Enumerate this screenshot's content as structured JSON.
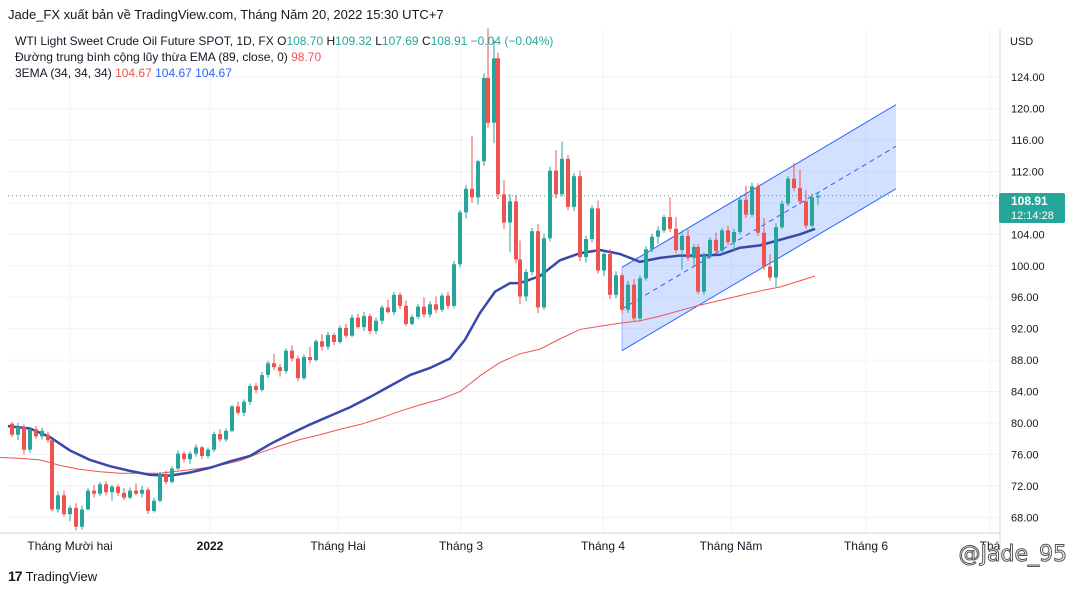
{
  "header": {
    "publisher_text": "Jade_FX xuất bản về TradingView.com, Tháng Năm 20, 2022 15:30 UTC+7"
  },
  "legend": {
    "symbol": "WTI Light Sweet Crude Oil Future SPOT, 1D, FX",
    "o_label": "O",
    "o_value": "108.70",
    "h_label": "H",
    "h_value": "109.32",
    "l_label": "L",
    "l_value": "107.69",
    "c_label": "C",
    "c_value": "108.91",
    "change": "−0.04 (−0.04%)",
    "ema_label": "Đường trung bình cộng lũy thừa EMA (89, close, 0)",
    "ema_value": "98.70",
    "ema3_label": "3EMA (34, 34, 34)",
    "ema3_v1": "104.67",
    "ema3_v2": "104.67",
    "ema3_v3": "104.67"
  },
  "price_axis": {
    "currency": "USD",
    "current_price": "108.91",
    "countdown": "12:14:28"
  },
  "footer": {
    "brand": "TradingView",
    "logo_text": "17"
  },
  "watermark": "@Jade_95",
  "colors": {
    "up": "#26a69a",
    "down": "#ef5350",
    "ema34": "#3949ab",
    "ema89": "#ef5350",
    "channel": "#2962ff",
    "channel_fill": "#2962ff"
  },
  "chart_data": {
    "type": "candlestick",
    "title": "WTI Light Sweet Crude Oil Future SPOT, 1D, FX",
    "ylabel": "USD",
    "ylim": [
      66,
      130
    ],
    "y_ticks": [
      68,
      72,
      76,
      80,
      84,
      88,
      92,
      96,
      100,
      104,
      108,
      112,
      116,
      120,
      124
    ],
    "x_ticks": [
      "Tháng Mười hai",
      "2022",
      "Tháng Hai",
      "Tháng 3",
      "Tháng 4",
      "Tháng Năm",
      "Tháng 6",
      "Thá"
    ],
    "last_price": 108.91,
    "grid": true,
    "series": [
      {
        "name": "EMA (89, close, 0)",
        "color": "#ef5350",
        "points": [
          [
            0,
            75.6
          ],
          [
            20,
            75.5
          ],
          [
            40,
            75.3
          ],
          [
            60,
            74.6
          ],
          [
            80,
            74.1
          ],
          [
            100,
            73.8
          ],
          [
            120,
            73.6
          ],
          [
            140,
            73.6
          ],
          [
            160,
            73.6
          ],
          [
            180,
            73.9
          ],
          [
            200,
            74.2
          ],
          [
            220,
            74.6
          ],
          [
            240,
            75.2
          ],
          [
            260,
            76.2
          ],
          [
            280,
            77.1
          ],
          [
            300,
            77.9
          ],
          [
            320,
            78.5
          ],
          [
            340,
            79.2
          ],
          [
            360,
            79.8
          ],
          [
            380,
            80.6
          ],
          [
            400,
            81.5
          ],
          [
            420,
            82.3
          ],
          [
            440,
            83.0
          ],
          [
            460,
            84.0
          ],
          [
            480,
            86.0
          ],
          [
            500,
            87.7
          ],
          [
            520,
            88.8
          ],
          [
            540,
            89.4
          ],
          [
            560,
            90.7
          ],
          [
            580,
            91.9
          ],
          [
            600,
            92.3
          ],
          [
            620,
            92.7
          ],
          [
            640,
            93.0
          ],
          [
            660,
            93.6
          ],
          [
            680,
            94.3
          ],
          [
            700,
            95.0
          ],
          [
            720,
            95.6
          ],
          [
            740,
            96.2
          ],
          [
            760,
            96.8
          ],
          [
            780,
            97.3
          ],
          [
            800,
            98.1
          ],
          [
            815,
            98.7
          ]
        ]
      },
      {
        "name": "3EMA (34, 34, 34)",
        "color": "#3949ab",
        "points": [
          [
            8,
            79.6
          ],
          [
            30,
            79.3
          ],
          [
            50,
            78.2
          ],
          [
            70,
            76.5
          ],
          [
            90,
            75.3
          ],
          [
            110,
            74.5
          ],
          [
            130,
            73.9
          ],
          [
            150,
            73.4
          ],
          [
            170,
            73.3
          ],
          [
            190,
            73.7
          ],
          [
            210,
            74.3
          ],
          [
            230,
            75.1
          ],
          [
            250,
            75.8
          ],
          [
            270,
            77.3
          ],
          [
            290,
            78.6
          ],
          [
            310,
            79.8
          ],
          [
            330,
            80.9
          ],
          [
            350,
            82.0
          ],
          [
            370,
            83.3
          ],
          [
            390,
            84.7
          ],
          [
            410,
            86.1
          ],
          [
            430,
            87.0
          ],
          [
            450,
            88.2
          ],
          [
            465,
            90.6
          ],
          [
            480,
            94.0
          ],
          [
            495,
            96.7
          ],
          [
            510,
            97.8
          ],
          [
            520,
            97.8
          ],
          [
            540,
            98.7
          ],
          [
            560,
            100.7
          ],
          [
            580,
            101.6
          ],
          [
            600,
            102.0
          ],
          [
            620,
            101.5
          ],
          [
            640,
            100.5
          ],
          [
            660,
            101.0
          ],
          [
            680,
            101.3
          ],
          [
            700,
            101.3
          ],
          [
            720,
            101.4
          ],
          [
            740,
            102.3
          ],
          [
            760,
            102.6
          ],
          [
            780,
            103.3
          ],
          [
            800,
            104.0
          ],
          [
            815,
            104.7
          ]
        ]
      }
    ],
    "channel": {
      "upper_start": [
        622,
        99.8
      ],
      "upper_end": [
        896,
        120.5
      ],
      "mid_start": [
        622,
        94.5
      ],
      "mid_end": [
        896,
        115.2
      ],
      "lower_start": [
        622,
        89.2
      ],
      "lower_end": [
        896,
        109.8
      ]
    },
    "candles": [
      [
        12,
        79.9,
        80.1,
        78.2,
        78.5
      ],
      [
        18,
        78.5,
        80.0,
        77.8,
        79.5
      ],
      [
        24,
        79.5,
        79.8,
        76.0,
        76.6
      ],
      [
        30,
        76.6,
        79.4,
        76.2,
        79.2
      ],
      [
        36,
        79.2,
        79.6,
        78.0,
        78.3
      ],
      [
        42,
        78.3,
        79.4,
        77.9,
        79.0
      ],
      [
        48,
        78.5,
        78.9,
        77.5,
        77.8
      ],
      [
        52,
        77.8,
        77.9,
        68.8,
        69.0
      ],
      [
        58,
        69.0,
        71.3,
        68.6,
        70.8
      ],
      [
        64,
        70.8,
        71.4,
        68.1,
        68.4
      ],
      [
        70,
        68.4,
        69.5,
        67.5,
        69.2
      ],
      [
        76,
        69.2,
        69.8,
        66.3,
        66.8
      ],
      [
        82,
        66.8,
        69.5,
        66.4,
        69.0
      ],
      [
        88,
        69.0,
        71.7,
        68.9,
        71.4
      ],
      [
        94,
        71.4,
        72.1,
        70.5,
        71.0
      ],
      [
        100,
        71.0,
        72.5,
        70.7,
        72.2
      ],
      [
        106,
        72.2,
        72.6,
        70.8,
        71.2
      ],
      [
        112,
        71.2,
        72.1,
        70.1,
        71.9
      ],
      [
        118,
        71.9,
        72.2,
        70.7,
        71.1
      ],
      [
        124,
        71.1,
        71.7,
        70.2,
        70.5
      ],
      [
        130,
        70.5,
        71.8,
        70.3,
        71.4
      ],
      [
        136,
        71.4,
        72.3,
        70.8,
        71.0
      ],
      [
        142,
        71.0,
        72.0,
        70.5,
        71.5
      ],
      [
        148,
        71.5,
        71.8,
        68.4,
        68.8
      ],
      [
        154,
        68.8,
        70.5,
        68.6,
        70.1
      ],
      [
        160,
        70.1,
        73.8,
        69.9,
        73.5
      ],
      [
        166,
        73.5,
        73.9,
        72.2,
        72.5
      ],
      [
        172,
        72.5,
        74.5,
        72.3,
        74.2
      ],
      [
        178,
        74.2,
        76.5,
        74.0,
        76.1
      ],
      [
        184,
        76.1,
        76.4,
        75.0,
        75.4
      ],
      [
        190,
        75.4,
        76.4,
        74.8,
        76.1
      ],
      [
        196,
        76.1,
        77.3,
        75.7,
        76.9
      ],
      [
        202,
        76.9,
        77.1,
        75.4,
        75.8
      ],
      [
        208,
        75.8,
        76.9,
        75.5,
        76.6
      ],
      [
        214,
        76.6,
        78.9,
        76.3,
        78.6
      ],
      [
        220,
        78.6,
        79.2,
        77.6,
        77.9
      ],
      [
        226,
        77.9,
        79.3,
        77.6,
        79.0
      ],
      [
        232,
        79.0,
        82.3,
        78.8,
        82.1
      ],
      [
        238,
        82.1,
        82.7,
        81.0,
        81.3
      ],
      [
        244,
        81.3,
        83.0,
        80.9,
        82.7
      ],
      [
        250,
        82.7,
        85.0,
        82.3,
        84.7
      ],
      [
        256,
        84.7,
        85.1,
        83.8,
        84.2
      ],
      [
        262,
        84.2,
        86.5,
        84.0,
        86.1
      ],
      [
        268,
        86.1,
        87.9,
        85.7,
        87.6
      ],
      [
        274,
        87.6,
        88.8,
        86.7,
        87.1
      ],
      [
        280,
        87.1,
        87.5,
        85.9,
        86.6
      ],
      [
        286,
        86.6,
        89.5,
        86.3,
        89.2
      ],
      [
        292,
        89.2,
        89.9,
        87.8,
        88.2
      ],
      [
        298,
        88.2,
        88.6,
        85.3,
        85.7
      ],
      [
        304,
        85.7,
        88.7,
        85.5,
        88.4
      ],
      [
        310,
        88.4,
        89.7,
        87.6,
        88.0
      ],
      [
        316,
        88.0,
        90.6,
        87.8,
        90.4
      ],
      [
        322,
        90.4,
        91.3,
        89.2,
        89.7
      ],
      [
        328,
        89.7,
        91.6,
        89.3,
        91.2
      ],
      [
        334,
        91.2,
        91.5,
        89.9,
        90.3
      ],
      [
        340,
        90.3,
        92.4,
        90.1,
        92.1
      ],
      [
        346,
        92.1,
        92.6,
        90.8,
        91.1
      ],
      [
        352,
        91.1,
        93.8,
        90.9,
        93.4
      ],
      [
        358,
        93.4,
        93.9,
        92.0,
        92.2
      ],
      [
        364,
        92.2,
        94.1,
        91.7,
        93.6
      ],
      [
        370,
        93.6,
        93.9,
        91.3,
        91.7
      ],
      [
        376,
        91.7,
        93.4,
        91.3,
        93.0
      ],
      [
        382,
        93.0,
        95.0,
        92.6,
        94.7
      ],
      [
        388,
        94.7,
        95.7,
        93.9,
        94.1
      ],
      [
        394,
        94.1,
        96.7,
        93.7,
        96.3
      ],
      [
        400,
        96.3,
        96.6,
        94.5,
        94.9
      ],
      [
        406,
        94.9,
        95.6,
        92.3,
        92.6
      ],
      [
        412,
        92.6,
        93.8,
        92.4,
        93.5
      ],
      [
        418,
        93.5,
        95.1,
        93.2,
        94.8
      ],
      [
        424,
        94.8,
        96.0,
        93.4,
        93.8
      ],
      [
        430,
        93.8,
        95.5,
        93.4,
        95.1
      ],
      [
        436,
        95.1,
        96.1,
        94.0,
        94.4
      ],
      [
        442,
        94.4,
        96.5,
        94.1,
        96.2
      ],
      [
        448,
        96.2,
        96.7,
        94.5,
        94.9
      ],
      [
        454,
        94.9,
        100.6,
        94.6,
        100.2
      ],
      [
        460,
        100.2,
        107.1,
        99.8,
        106.8
      ],
      [
        466,
        106.8,
        110.3,
        106.0,
        109.8
      ],
      [
        472,
        109.8,
        116.5,
        108.0,
        108.7
      ],
      [
        478,
        108.7,
        113.5,
        107.8,
        113.3
      ],
      [
        484,
        113.3,
        124.5,
        112.7,
        123.9
      ],
      [
        488,
        123.9,
        130.2,
        117.6,
        118.2
      ],
      [
        494,
        118.2,
        128.7,
        115.6,
        126.4
      ],
      [
        498,
        126.4,
        127.1,
        108.5,
        109.1
      ],
      [
        504,
        109.1,
        110.9,
        104.7,
        105.5
      ],
      [
        510,
        105.5,
        109.1,
        101.7,
        108.2
      ],
      [
        516,
        108.2,
        109.0,
        100.3,
        100.8
      ],
      [
        520,
        100.8,
        103.2,
        95.1,
        96.1
      ],
      [
        526,
        96.1,
        99.6,
        95.5,
        99.2
      ],
      [
        532,
        99.2,
        104.8,
        98.8,
        104.4
      ],
      [
        538,
        104.4,
        105.3,
        94.0,
        94.7
      ],
      [
        544,
        94.7,
        104.1,
        94.4,
        103.5
      ],
      [
        550,
        103.5,
        112.6,
        103.1,
        112.1
      ],
      [
        556,
        112.1,
        114.7,
        108.6,
        109.1
      ],
      [
        562,
        109.1,
        115.8,
        108.8,
        113.6
      ],
      [
        568,
        113.6,
        114.1,
        107.1,
        107.5
      ],
      [
        574,
        107.5,
        111.8,
        107.0,
        111.4
      ],
      [
        580,
        111.4,
        112.1,
        100.6,
        101.1
      ],
      [
        586,
        101.1,
        103.8,
        100.4,
        103.4
      ],
      [
        592,
        103.4,
        107.7,
        103.0,
        107.3
      ],
      [
        598,
        107.3,
        108.3,
        99.0,
        99.4
      ],
      [
        604,
        99.4,
        101.9,
        98.7,
        101.5
      ],
      [
        610,
        101.5,
        102.1,
        95.8,
        96.3
      ],
      [
        616,
        96.3,
        99.3,
        95.9,
        98.8
      ],
      [
        622,
        98.8,
        99.1,
        94.0,
        94.4
      ],
      [
        628,
        94.4,
        98.1,
        94.0,
        97.6
      ],
      [
        634,
        97.6,
        98.3,
        92.9,
        93.3
      ],
      [
        640,
        93.3,
        98.8,
        92.9,
        98.4
      ],
      [
        646,
        98.4,
        102.5,
        98.1,
        102.1
      ],
      [
        652,
        102.1,
        104.1,
        101.7,
        103.7
      ],
      [
        658,
        103.7,
        105.0,
        102.8,
        104.5
      ],
      [
        664,
        104.5,
        106.5,
        104.2,
        106.2
      ],
      [
        670,
        106.2,
        108.7,
        104.3,
        104.7
      ],
      [
        676,
        104.7,
        106.2,
        101.6,
        102.0
      ],
      [
        682,
        102.0,
        104.5,
        99.5,
        103.8
      ],
      [
        688,
        103.8,
        104.6,
        100.6,
        101.0
      ],
      [
        694,
        101.0,
        102.8,
        99.8,
        102.4
      ],
      [
        698,
        102.4,
        102.8,
        96.4,
        96.7
      ],
      [
        704,
        96.7,
        101.7,
        96.3,
        101.3
      ],
      [
        710,
        101.3,
        103.6,
        100.9,
        103.3
      ],
      [
        716,
        103.3,
        104.2,
        101.5,
        101.9
      ],
      [
        722,
        101.9,
        104.8,
        101.5,
        104.5
      ],
      [
        728,
        104.5,
        105.1,
        102.6,
        103.0
      ],
      [
        734,
        103.0,
        104.7,
        101.8,
        104.3
      ],
      [
        740,
        104.3,
        108.7,
        104.0,
        108.4
      ],
      [
        746,
        108.4,
        110.2,
        106.1,
        106.5
      ],
      [
        752,
        106.5,
        110.6,
        106.2,
        110.1
      ],
      [
        758,
        110.1,
        110.5,
        103.8,
        104.2
      ],
      [
        764,
        104.2,
        106.1,
        99.5,
        99.9
      ],
      [
        770,
        99.9,
        101.5,
        98.1,
        98.5
      ],
      [
        776,
        98.5,
        105.4,
        97.3,
        104.9
      ],
      [
        782,
        104.9,
        108.3,
        104.7,
        107.9
      ],
      [
        788,
        107.9,
        111.4,
        107.6,
        111.1
      ],
      [
        794,
        111.1,
        113.1,
        109.5,
        109.9
      ],
      [
        800,
        109.9,
        112.2,
        107.8,
        108.2
      ],
      [
        806,
        108.2,
        109.6,
        104.7,
        105.1
      ],
      [
        812,
        105.1,
        109.2,
        104.9,
        108.7
      ],
      [
        818,
        108.7,
        109.3,
        107.7,
        108.9
      ]
    ]
  }
}
